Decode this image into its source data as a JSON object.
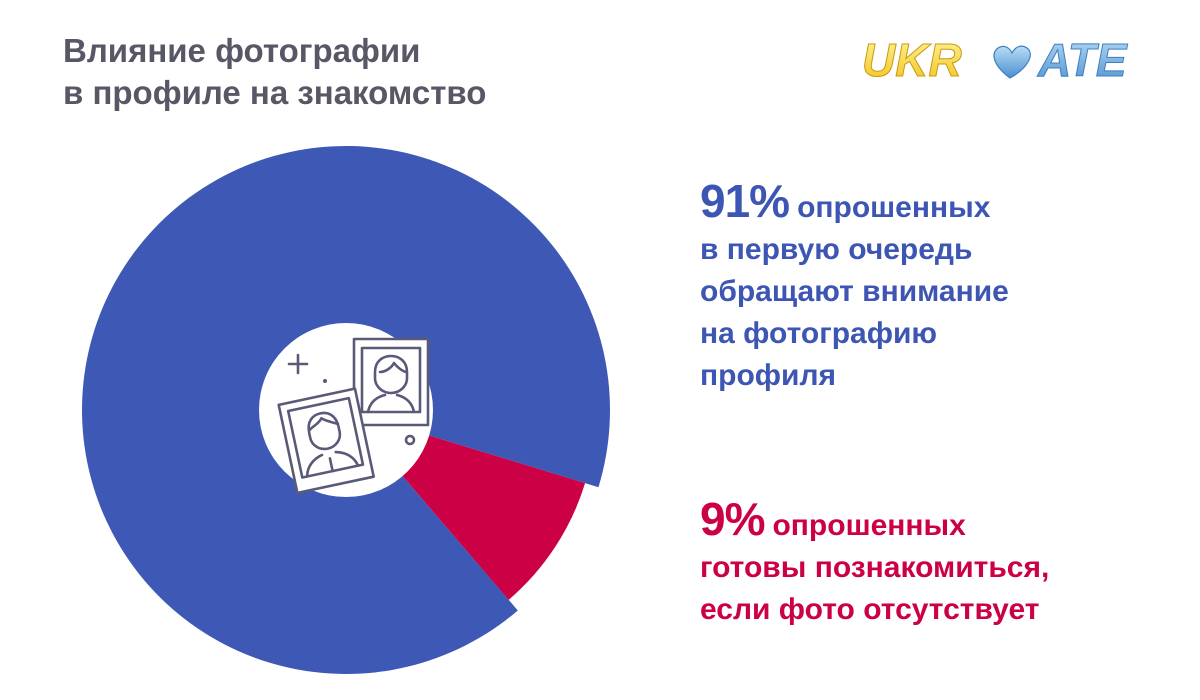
{
  "title": {
    "line1": "Влияние фотографии",
    "line2": "в профиле на знакомство"
  },
  "logo": {
    "text_left": "UKR",
    "text_right": "ATE",
    "icon": "heart-icon"
  },
  "colors": {
    "blue": "#3d59b5",
    "red": "#cc0044",
    "title": "#575766",
    "icon": "#5a5a78"
  },
  "center_icon": "photo-portraits-icon",
  "chart_data": {
    "type": "pie",
    "style": "donut",
    "title": "Влияние фотографии в профиле на знакомство",
    "slices": [
      {
        "label": "91% опрошенных в первую очередь обращают внимание на фотографию профиля",
        "value": 91,
        "color": "#3d59b5"
      },
      {
        "label": "9% опрошенных готовы познакомиться, если фото отсутствует",
        "value": 9,
        "color": "#cc0044"
      }
    ]
  },
  "stats": [
    {
      "percent": "91%",
      "lines": [
        "опрошенных",
        "в первую очередь",
        "обращают внимание",
        "на фотографию",
        "профиля"
      ]
    },
    {
      "percent": "9%",
      "lines": [
        "опрошенных",
        "готовы познакомиться,",
        "если фото отсутствует"
      ]
    }
  ]
}
